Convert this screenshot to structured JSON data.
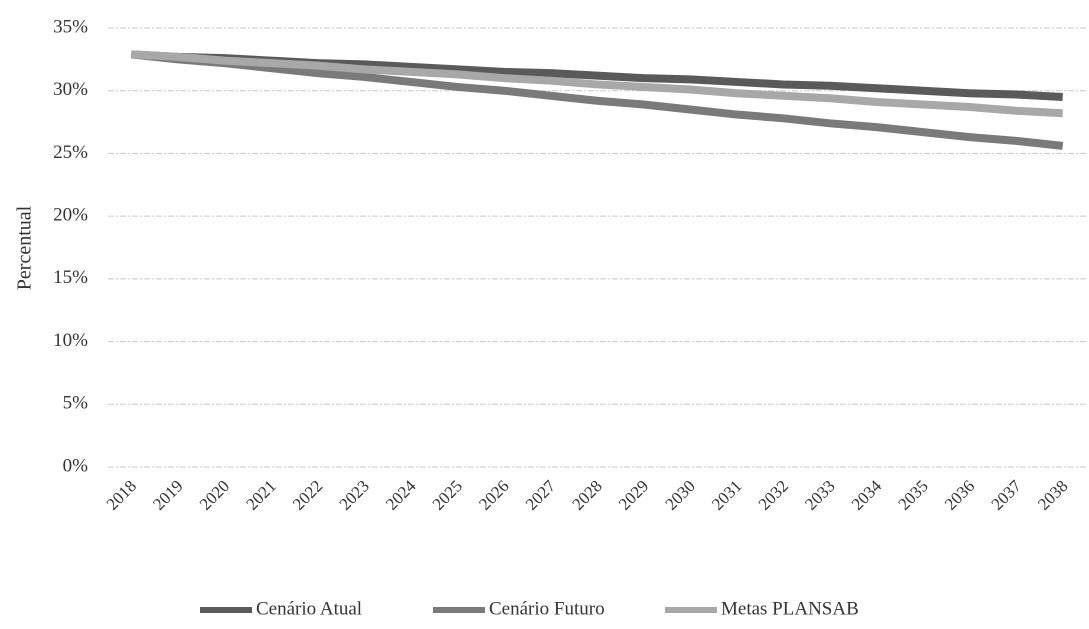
{
  "chart_data": {
    "type": "line",
    "y_label": "Percentual",
    "categories": [
      "2018",
      "2019",
      "2020",
      "2021",
      "2022",
      "2023",
      "2024",
      "2025",
      "2026",
      "2027",
      "2028",
      "2029",
      "2030",
      "2031",
      "2032",
      "2033",
      "2034",
      "2035",
      "2036",
      "2037",
      "2038"
    ],
    "series": [
      {
        "name": "Cenário Atual",
        "color": "#5a5a5a",
        "values": [
          32.9,
          32.7,
          32.6,
          32.4,
          32.2,
          32.1,
          31.9,
          31.7,
          31.5,
          31.4,
          31.2,
          31.0,
          30.9,
          30.7,
          30.5,
          30.4,
          30.2,
          30.0,
          29.8,
          29.7,
          29.5
        ]
      },
      {
        "name": "Cenário Futuro",
        "color": "#7a7a7a",
        "values": [
          32.9,
          32.5,
          32.2,
          31.8,
          31.4,
          31.1,
          30.7,
          30.3,
          30.0,
          29.6,
          29.2,
          28.9,
          28.5,
          28.1,
          27.8,
          27.4,
          27.1,
          26.7,
          26.3,
          26.0,
          25.6
        ]
      },
      {
        "name": "Metas PLANSAB",
        "color": "#a8a8a8",
        "values": [
          32.9,
          32.7,
          32.4,
          32.2,
          32.0,
          31.7,
          31.5,
          31.3,
          31.0,
          30.8,
          30.5,
          30.3,
          30.1,
          29.8,
          29.6,
          29.4,
          29.1,
          28.9,
          28.7,
          28.4,
          28.2
        ]
      }
    ],
    "ylim": [
      0,
      35
    ],
    "yticks": [
      {
        "value": 0,
        "label": "0%"
      },
      {
        "value": 5,
        "label": "5%"
      },
      {
        "value": 10,
        "label": "10%"
      },
      {
        "value": 15,
        "label": "15%"
      },
      {
        "value": 20,
        "label": "20%"
      },
      {
        "value": 25,
        "label": "25%"
      },
      {
        "value": 30,
        "label": "30%"
      },
      {
        "value": 35,
        "label": "35%"
      }
    ],
    "grid": true,
    "legend": "bottom"
  }
}
